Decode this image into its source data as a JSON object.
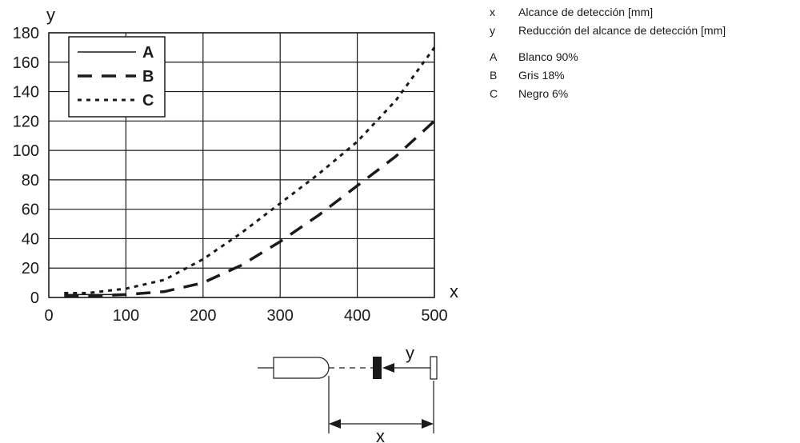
{
  "chart_data": {
    "type": "line",
    "xlabel": "x",
    "ylabel": "y",
    "xlim": [
      0,
      500
    ],
    "ylim": [
      0,
      180
    ],
    "xticks": [
      0,
      100,
      200,
      300,
      400,
      500
    ],
    "yticks": [
      0,
      20,
      40,
      60,
      80,
      100,
      120,
      140,
      160,
      180
    ],
    "grid": true,
    "legend_position": "top-left",
    "series": [
      {
        "name": "A",
        "dash": "solid",
        "x": [
          20,
          50,
          80,
          100
        ],
        "y": [
          2,
          2,
          2,
          2
        ]
      },
      {
        "name": "B",
        "dash": "dashed",
        "x": [
          20,
          50,
          100,
          150,
          200,
          250,
          300,
          350,
          400,
          450,
          500
        ],
        "y": [
          1,
          1,
          2,
          4,
          10,
          22,
          38,
          56,
          76,
          96,
          120
        ]
      },
      {
        "name": "C",
        "dash": "dotted",
        "x": [
          20,
          50,
          100,
          150,
          200,
          250,
          300,
          350,
          400,
          450,
          500
        ],
        "y": [
          3,
          3,
          6,
          12,
          26,
          44,
          64,
          84,
          106,
          134,
          170
        ]
      }
    ]
  },
  "notes": [
    {
      "key": "x",
      "text": "Alcance de detección [mm]"
    },
    {
      "key": "y",
      "text": "Reducción del alcance de detección [mm]"
    },
    {
      "key": "A",
      "text": "Blanco 90%"
    },
    {
      "key": "B",
      "text": "Gris 18%"
    },
    {
      "key": "C",
      "text": "Negro 6%"
    }
  ],
  "diagram": {
    "x_label": "x",
    "y_label": "y"
  }
}
